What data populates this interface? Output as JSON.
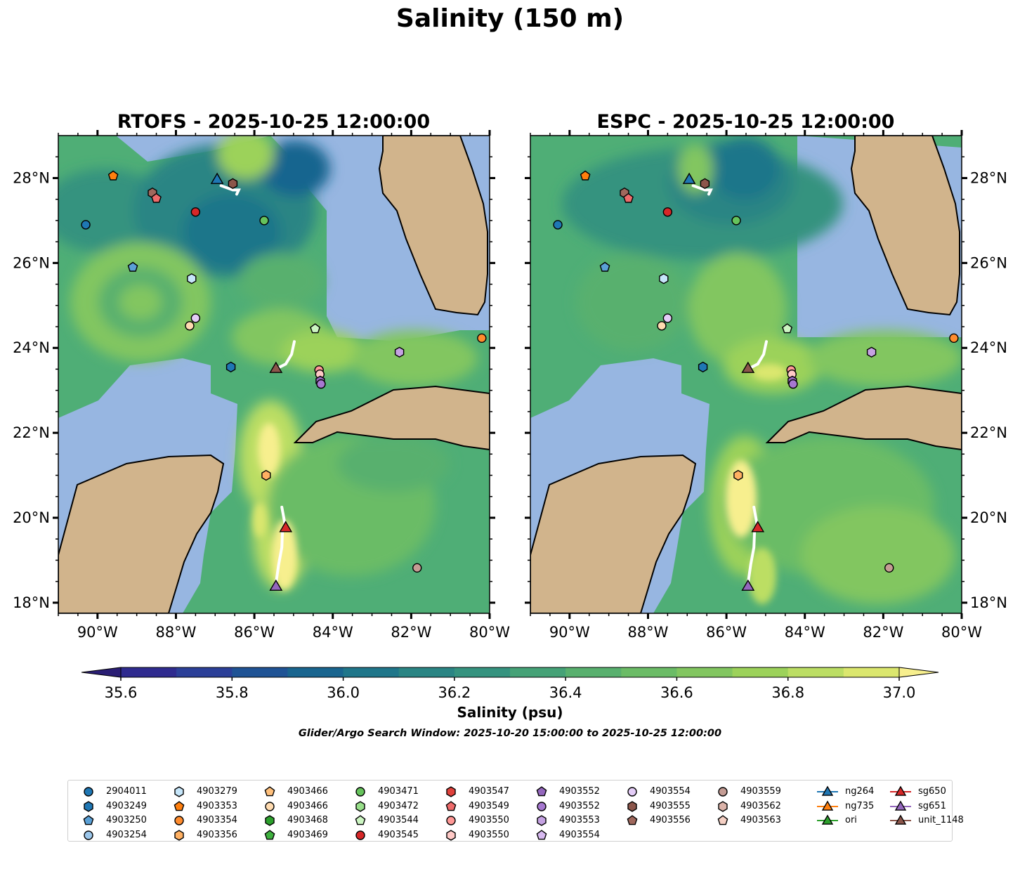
{
  "figure": {
    "title": "Salinity (150 m)",
    "colorbar_label": "Salinity (psu)",
    "search_window": "Glider/Argo Search Window: 2025-10-20 15:00:00 to 2025-10-25 12:00:00"
  },
  "panels": [
    {
      "title": "RTOFS - 2025-10-25 12:00:00"
    },
    {
      "title": "ESPC - 2025-10-25 12:00:00"
    }
  ],
  "map_axes": {
    "lon_range": [
      -91,
      -80
    ],
    "lat_range": [
      17.75,
      29
    ],
    "lon_ticks": [
      "90°W",
      "88°W",
      "86°W",
      "84°W",
      "82°W",
      "80°W"
    ],
    "lat_ticks": [
      "18°N",
      "20°N",
      "22°N",
      "24°N",
      "26°N",
      "28°N"
    ]
  },
  "colorbar": {
    "min": 35.6,
    "max": 37.0,
    "step": 0.1,
    "extend": "both",
    "tick_labels": [
      "35.6",
      "35.8",
      "36.0",
      "36.2",
      "36.4",
      "36.6",
      "36.8",
      "37.0"
    ],
    "colors": [
      "#2a1e74",
      "#2f2b8f",
      "#2b3f98",
      "#1f5395",
      "#19658f",
      "#1f768a",
      "#2a8584",
      "#35937f",
      "#45a277",
      "#58b06e",
      "#6bbc66",
      "#82c660",
      "#9cd25a",
      "#bcde64",
      "#dbe76e",
      "#f7ef8e"
    ]
  },
  "colors": {
    "ocean": "#97b6e1",
    "land": "#d1b48c",
    "water_mask": "#4fae76"
  },
  "legend": {
    "columns": [
      [
        {
          "label": "2904011",
          "marker": "circle",
          "color": "#1f77b4"
        },
        {
          "label": "4903249",
          "marker": "hexagon",
          "color": "#1f77b4"
        },
        {
          "label": "4903250",
          "marker": "pentagon",
          "color": "#5aa0d6"
        },
        {
          "label": "4903254",
          "marker": "circle",
          "color": "#9bc6ea"
        }
      ],
      [
        {
          "label": "4903279",
          "marker": "hexagon",
          "color": "#c6e6fa"
        },
        {
          "label": "4903353",
          "marker": "pentagon",
          "color": "#ff7f0e"
        },
        {
          "label": "4903354",
          "marker": "circle",
          "color": "#ff8c2e"
        },
        {
          "label": "4903356",
          "marker": "hexagon",
          "color": "#ffb062"
        }
      ],
      [
        {
          "label": "4903466",
          "marker": "pentagon",
          "color": "#ffc07c"
        },
        {
          "label": "4903466",
          "marker": "circle",
          "color": "#ffdbb0"
        },
        {
          "label": "4903468",
          "marker": "hexagon",
          "color": "#2ca02c"
        },
        {
          "label": "4903469",
          "marker": "pentagon",
          "color": "#3fb13f"
        }
      ],
      [
        {
          "label": "4903471",
          "marker": "circle",
          "color": "#66c35c"
        },
        {
          "label": "4903472",
          "marker": "hexagon",
          "color": "#98df8a"
        },
        {
          "label": "4903544",
          "marker": "pentagon",
          "color": "#ccf5c2"
        },
        {
          "label": "4903545",
          "marker": "circle",
          "color": "#d62728"
        }
      ],
      [
        {
          "label": "4903547",
          "marker": "hexagon",
          "color": "#e0423c"
        },
        {
          "label": "4903549",
          "marker": "pentagon",
          "color": "#ee6b6b"
        },
        {
          "label": "4903550",
          "marker": "circle",
          "color": "#ff9896"
        },
        {
          "label": "4903550",
          "marker": "hexagon",
          "color": "#ffc9c6"
        }
      ],
      [
        {
          "label": "4903552",
          "marker": "pentagon",
          "color": "#9467bd"
        },
        {
          "label": "4903552",
          "marker": "circle",
          "color": "#a678d0"
        },
        {
          "label": "4903553",
          "marker": "hexagon",
          "color": "#c5a2e2"
        },
        {
          "label": "4903554",
          "marker": "pentagon",
          "color": "#d7b9f0"
        }
      ],
      [
        {
          "label": "4903554",
          "marker": "circle",
          "color": "#e4cdf7"
        },
        {
          "label": "4903555",
          "marker": "hexagon",
          "color": "#8c564b"
        },
        {
          "label": "4903556",
          "marker": "pentagon",
          "color": "#a0685d"
        }
      ],
      [
        {
          "label": "4903559",
          "marker": "circle",
          "color": "#c49c94"
        },
        {
          "label": "4903562",
          "marker": "hexagon",
          "color": "#dbb3a9"
        },
        {
          "label": "4903563",
          "marker": "pentagon",
          "color": "#f5d0c4"
        }
      ],
      [
        {
          "label": "ng264",
          "marker": "triangle",
          "color": "#1f77b4"
        },
        {
          "label": "ng735",
          "marker": "triangle",
          "color": "#ff7f0e"
        },
        {
          "label": "ori",
          "marker": "triangle",
          "color": "#2ca02c"
        }
      ],
      [
        {
          "label": "sg650",
          "marker": "triangle",
          "color": "#d62728"
        },
        {
          "label": "sg651",
          "marker": "triangle",
          "color": "#9467bd"
        },
        {
          "label": "unit_1148",
          "marker": "triangle",
          "color": "#8c564b"
        }
      ]
    ]
  },
  "argo_floats": [
    {
      "lon": -90.3,
      "lat": 26.9,
      "marker": "circle",
      "color": "#1f77b4"
    },
    {
      "lon": -89.6,
      "lat": 28.05,
      "marker": "pentagon",
      "color": "#ff7f0e"
    },
    {
      "lon": -88.6,
      "lat": 27.65,
      "marker": "hexagon",
      "color": "#a0685d"
    },
    {
      "lon": -88.5,
      "lat": 27.52,
      "marker": "pentagon",
      "color": "#ee6b6b"
    },
    {
      "lon": -87.5,
      "lat": 27.2,
      "marker": "circle",
      "color": "#d62728"
    },
    {
      "lon": -86.55,
      "lat": 27.87,
      "marker": "hexagon",
      "color": "#8c564b"
    },
    {
      "lon": -85.75,
      "lat": 27.0,
      "marker": "circle",
      "color": "#66c35c"
    },
    {
      "lon": -89.1,
      "lat": 25.9,
      "marker": "pentagon",
      "color": "#5aa0d6"
    },
    {
      "lon": -87.6,
      "lat": 25.63,
      "marker": "hexagon",
      "color": "#c6e6fa"
    },
    {
      "lon": -87.5,
      "lat": 24.7,
      "marker": "circle",
      "color": "#e4cdf7"
    },
    {
      "lon": -87.65,
      "lat": 24.52,
      "marker": "circle",
      "color": "#ffdbb0"
    },
    {
      "lon": -84.45,
      "lat": 24.45,
      "marker": "pentagon",
      "color": "#ccf5c2"
    },
    {
      "lon": -86.6,
      "lat": 23.55,
      "marker": "hexagon",
      "color": "#1f77b4"
    },
    {
      "lon": -84.35,
      "lat": 23.48,
      "marker": "circle",
      "color": "#ff9896"
    },
    {
      "lon": -84.33,
      "lat": 23.38,
      "marker": "circle",
      "color": "#ffc9c6"
    },
    {
      "lon": -84.32,
      "lat": 23.22,
      "marker": "hexagon",
      "color": "#9467bd"
    },
    {
      "lon": -84.3,
      "lat": 23.15,
      "marker": "circle",
      "color": "#a678d0"
    },
    {
      "lon": -82.3,
      "lat": 23.9,
      "marker": "hexagon",
      "color": "#c5a2e2"
    },
    {
      "lon": -80.2,
      "lat": 24.23,
      "marker": "circle",
      "color": "#ff8c2e"
    },
    {
      "lon": -85.7,
      "lat": 21.0,
      "marker": "hexagon",
      "color": "#ffb062"
    },
    {
      "lon": -81.85,
      "lat": 18.82,
      "marker": "circle",
      "color": "#c49c94"
    }
  ],
  "gliders": [
    {
      "lon": -86.95,
      "lat": 27.95,
      "color": "#1f77b4",
      "track": [
        [
          -86.85,
          27.82
        ],
        [
          -86.55,
          27.72
        ],
        [
          -86.4,
          27.72
        ],
        [
          -86.45,
          27.62
        ]
      ]
    },
    {
      "lon": -85.45,
      "lat": 23.5,
      "color": "#8c564b",
      "track": [
        [
          -85.5,
          23.48
        ],
        [
          -85.2,
          23.62
        ],
        [
          -85.05,
          23.85
        ],
        [
          -84.98,
          24.15
        ]
      ]
    },
    {
      "lon": -85.2,
      "lat": 19.75,
      "color": "#d62728",
      "track": [
        [
          -85.3,
          20.25
        ],
        [
          -85.25,
          20.0
        ],
        [
          -85.2,
          19.75
        ]
      ]
    },
    {
      "lon": -85.45,
      "lat": 18.37,
      "color": "#9467bd",
      "track": [
        [
          -85.45,
          18.45
        ],
        [
          -85.38,
          18.9
        ],
        [
          -85.3,
          19.3
        ],
        [
          -85.28,
          19.75
        ]
      ]
    }
  ]
}
